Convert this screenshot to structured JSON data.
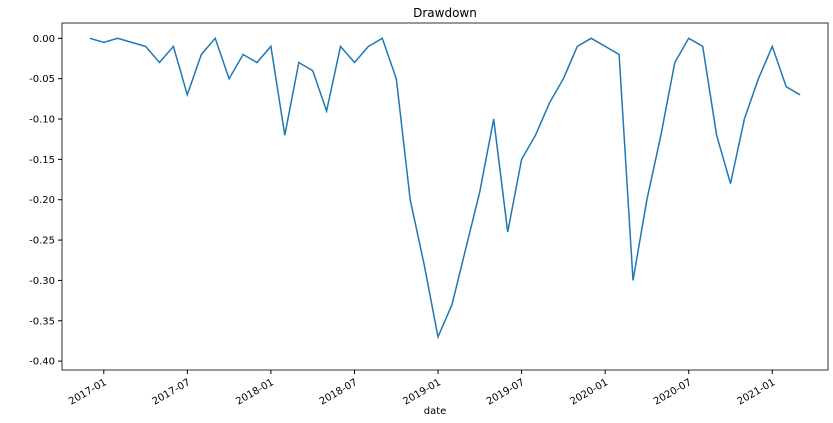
{
  "chart_data": {
    "type": "line",
    "title": "Drawdown",
    "x_label": "date",
    "x": [
      "2016-12",
      "2017-01",
      "2017-02",
      "2017-03",
      "2017-04",
      "2017-05",
      "2017-06",
      "2017-07",
      "2017-08",
      "2017-09",
      "2017-10",
      "2017-11",
      "2017-12",
      "2018-01",
      "2018-02",
      "2018-03",
      "2018-04",
      "2018-05",
      "2018-06",
      "2018-07",
      "2018-08",
      "2018-09",
      "2018-10",
      "2018-11",
      "2018-12",
      "2019-01",
      "2019-02",
      "2019-03",
      "2019-04",
      "2019-05",
      "2019-06",
      "2019-07",
      "2019-08",
      "2019-09",
      "2019-10",
      "2019-11",
      "2019-12",
      "2020-01",
      "2020-02",
      "2020-03",
      "2020-04",
      "2020-05",
      "2020-06",
      "2020-07",
      "2020-08",
      "2020-09",
      "2020-10",
      "2020-11",
      "2020-12",
      "2021-01",
      "2021-02",
      "2021-03"
    ],
    "series": [
      {
        "color": "#1f77b4",
        "values": [
          0.0,
          -0.005,
          0.0,
          -0.005,
          -0.01,
          -0.03,
          -0.01,
          -0.07,
          -0.02,
          0.0,
          -0.05,
          -0.02,
          -0.03,
          -0.01,
          -0.12,
          -0.03,
          -0.04,
          -0.09,
          -0.01,
          -0.03,
          -0.01,
          0.0,
          -0.05,
          -0.2,
          -0.28,
          -0.37,
          -0.33,
          -0.26,
          -0.19,
          -0.1,
          -0.24,
          -0.15,
          -0.12,
          -0.08,
          -0.05,
          -0.01,
          0.0,
          -0.01,
          -0.02,
          -0.3,
          -0.2,
          -0.12,
          -0.03,
          0.0,
          -0.01,
          -0.12,
          -0.18,
          -0.1,
          -0.05,
          -0.01,
          -0.06,
          -0.07
        ]
      }
    ],
    "xlim": [
      "2016-10",
      "2021-05"
    ],
    "xticks": [
      "2017-01",
      "2017-07",
      "2018-01",
      "2018-07",
      "2019-01",
      "2019-07",
      "2020-01",
      "2020-07",
      "2021-01"
    ],
    "ylim": [
      -0.411,
      0.019
    ],
    "yticks": [
      {
        "value": 0,
        "label": "0.00"
      },
      -0.05,
      {
        "value": -0.1,
        "label": "-0.10"
      },
      -0.15,
      {
        "value": -0.2,
        "label": "-0.20"
      },
      -0.25,
      {
        "value": -0.3,
        "label": "-0.30"
      },
      -0.35,
      {
        "value": -0.4,
        "label": "-0.40"
      }
    ],
    "grid": false
  }
}
